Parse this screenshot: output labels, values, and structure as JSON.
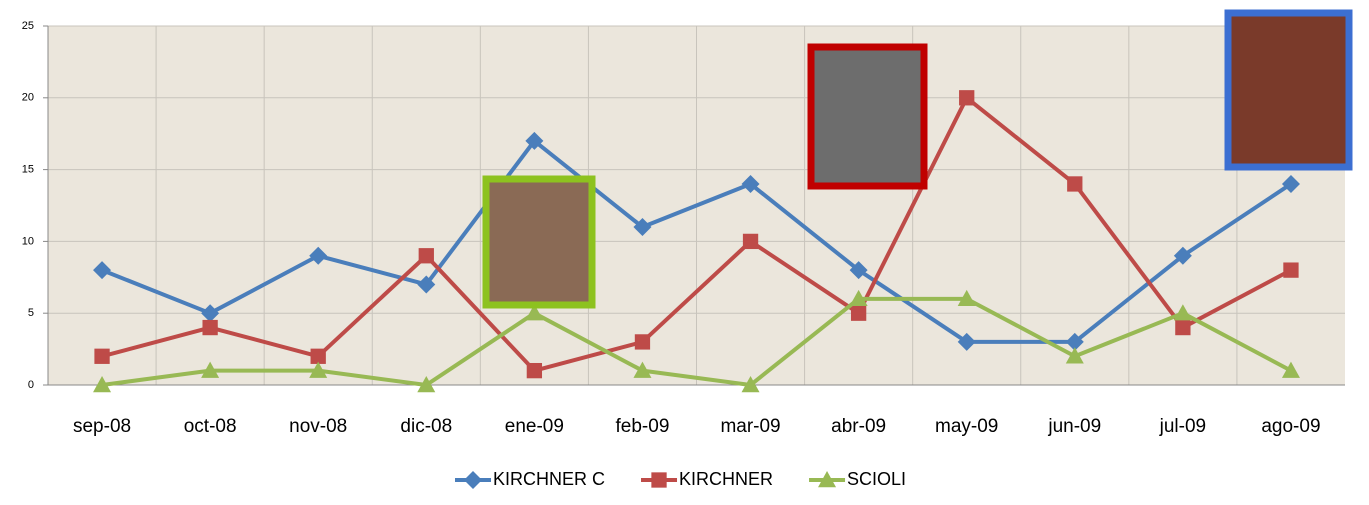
{
  "chart_data": {
    "type": "line",
    "categories": [
      "sep-08",
      "oct-08",
      "nov-08",
      "dic-08",
      "ene-09",
      "feb-09",
      "mar-09",
      "abr-09",
      "may-09",
      "jun-09",
      "jul-09",
      "ago-09"
    ],
    "series": [
      {
        "name": "KIRCHNER C",
        "color": "#4a7ebb",
        "marker": "diamond",
        "values": [
          8,
          5,
          9,
          7,
          17,
          11,
          14,
          8,
          3,
          3,
          9,
          14
        ]
      },
      {
        "name": "KIRCHNER",
        "color": "#be4b48",
        "marker": "square",
        "values": [
          2,
          4,
          2,
          9,
          1,
          3,
          10,
          5,
          20,
          14,
          4,
          8
        ]
      },
      {
        "name": "SCIOLI",
        "color": "#98b954",
        "marker": "triangle",
        "values": [
          0,
          1,
          1,
          0,
          5,
          1,
          0,
          6,
          6,
          2,
          5,
          1
        ]
      }
    ],
    "ylim": [
      0,
      25
    ],
    "yticks": [
      0,
      5,
      10,
      15,
      20,
      25
    ],
    "grid": true,
    "legend": "bottom"
  }
}
